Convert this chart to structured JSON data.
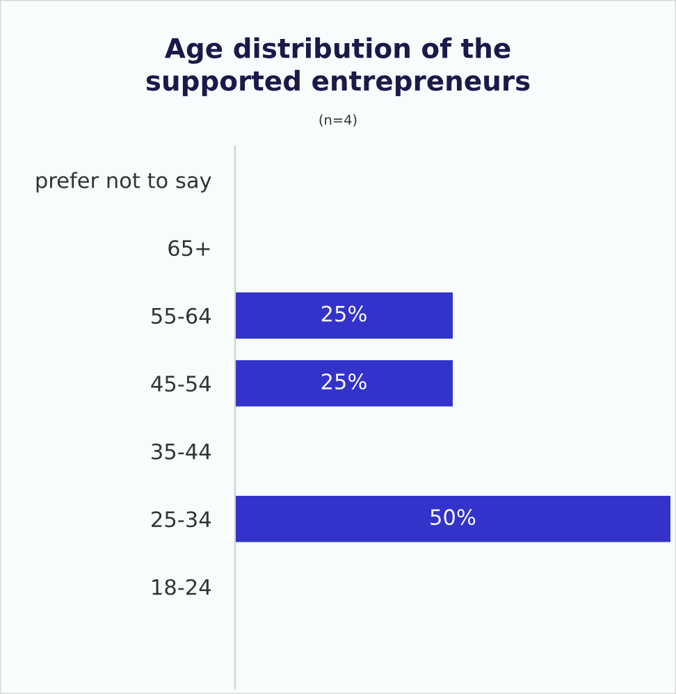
{
  "chart_data": {
    "type": "bar",
    "orientation": "horizontal",
    "title": "Age distribution of the\nsupported entrepreneurs",
    "subtitle": "(n=4)",
    "categories": [
      "prefer not to say",
      "65+",
      "55-64",
      "45-54",
      "35-44",
      "25-34",
      "18-24"
    ],
    "values": [
      0,
      0,
      25,
      25,
      0,
      50,
      0
    ],
    "xlim": [
      0,
      50
    ],
    "value_labels": [
      null,
      null,
      "25%",
      "25%",
      null,
      "50%",
      null
    ],
    "color": "#3333cc",
    "tick_labels": "y",
    "grid": false,
    "legend": false
  }
}
